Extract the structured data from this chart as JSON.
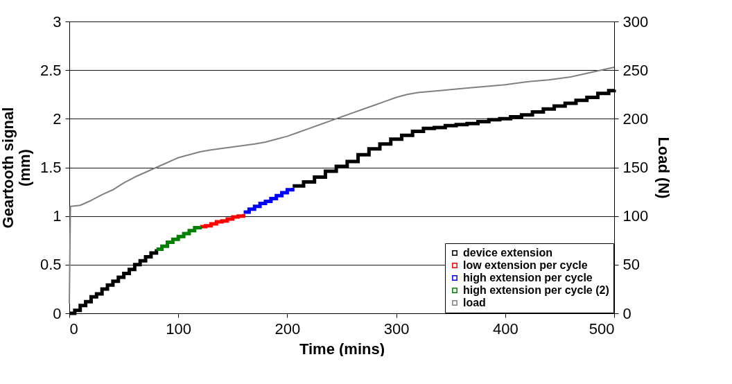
{
  "chart_data": {
    "type": "step",
    "xlabel": "Time (mins)",
    "ylabel": "Geartooth signal (mm)",
    "y2label": "Load (N)",
    "xlim": [
      0,
      500
    ],
    "xticks": [
      0,
      100,
      200,
      300,
      400,
      500
    ],
    "ylim": [
      0,
      3
    ],
    "yticks": [
      0,
      0.5,
      1,
      1.5,
      2,
      2.5,
      3
    ],
    "y2lim": [
      0,
      300
    ],
    "y2ticks": [
      0,
      50,
      100,
      150,
      200,
      250,
      300
    ],
    "grid": "y",
    "legend": "bottom right",
    "series": [
      {
        "name": "device extension",
        "color": "#000000",
        "x": [
          0,
          5,
          10,
          15,
          20,
          25,
          30,
          35,
          40,
          45,
          50,
          55,
          60,
          65,
          70,
          75,
          80,
          150,
          205,
          215,
          225,
          235,
          245,
          255,
          265,
          275,
          285,
          295,
          305,
          315,
          325,
          335,
          345,
          355,
          365,
          375,
          385,
          395,
          405,
          415,
          425,
          435,
          445,
          455,
          465,
          475,
          485,
          495,
          500
        ],
        "values": [
          0,
          0.03,
          0.08,
          0.12,
          0.17,
          0.2,
          0.25,
          0.29,
          0.33,
          0.37,
          0.41,
          0.45,
          0.5,
          0.54,
          0.58,
          0.62,
          0.66,
          null,
          1.31,
          1.35,
          1.4,
          1.46,
          1.51,
          1.56,
          1.63,
          1.69,
          1.74,
          1.79,
          1.83,
          1.87,
          1.9,
          1.91,
          1.93,
          1.94,
          1.95,
          1.97,
          1.99,
          2.0,
          2.02,
          2.04,
          2.07,
          2.1,
          2.13,
          2.16,
          2.19,
          2.22,
          2.26,
          2.29,
          2.3
        ]
      },
      {
        "name": "low extension per cycle",
        "color": "#ff0000",
        "x": [
          120,
          125,
          130,
          135,
          140,
          145,
          150,
          155,
          160
        ],
        "values": [
          0.89,
          0.9,
          0.92,
          0.94,
          0.95,
          0.97,
          0.99,
          1.0,
          1.02
        ]
      },
      {
        "name": "high extension per cycle",
        "color": "#0000ff",
        "x": [
          160,
          165,
          170,
          175,
          180,
          185,
          190,
          195,
          200,
          205
        ],
        "values": [
          1.04,
          1.07,
          1.1,
          1.13,
          1.15,
          1.18,
          1.21,
          1.24,
          1.27,
          1.29
        ]
      },
      {
        "name": "high extension per cycle (2)",
        "color": "#008000",
        "x": [
          80,
          85,
          90,
          95,
          100,
          105,
          110,
          115,
          120
        ],
        "values": [
          0.66,
          0.69,
          0.73,
          0.76,
          0.79,
          0.82,
          0.85,
          0.88,
          0.89
        ]
      },
      {
        "name": "load",
        "color": "#808080",
        "type": "line",
        "axis": "y2",
        "x": [
          0,
          1,
          10,
          20,
          30,
          40,
          50,
          60,
          70,
          80,
          90,
          100,
          110,
          120,
          130,
          150,
          170,
          180,
          190,
          200,
          210,
          220,
          230,
          240,
          250,
          260,
          270,
          280,
          290,
          300,
          310,
          320,
          340,
          360,
          380,
          400,
          420,
          440,
          460,
          480,
          500
        ],
        "values": [
          10,
          110,
          111,
          116,
          122,
          127,
          134,
          140,
          145,
          150,
          155,
          160,
          163,
          166,
          168,
          171,
          174,
          176,
          179,
          182,
          186,
          190,
          194,
          198,
          202,
          206,
          210,
          214,
          218,
          222,
          225,
          227,
          229,
          231,
          233,
          235,
          238,
          240,
          243,
          248,
          253
        ]
      }
    ]
  }
}
